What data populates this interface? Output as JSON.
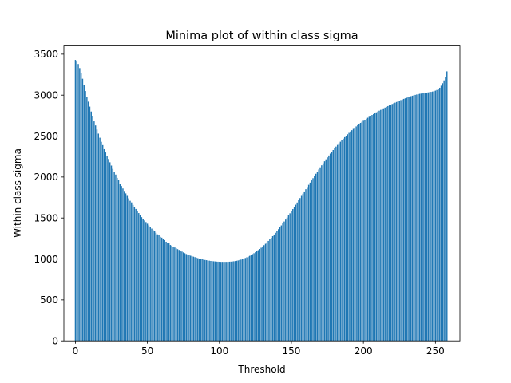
{
  "chart_data": {
    "type": "bar",
    "title": "Minima plot of within class sigma",
    "xlabel": "Threshold",
    "ylabel": "Within class sigma",
    "xlim": [
      -8,
      267
    ],
    "ylim": [
      0,
      3600
    ],
    "xticks": [
      0,
      50,
      100,
      150,
      200,
      250
    ],
    "yticks": [
      0,
      500,
      1000,
      1500,
      2000,
      2500,
      3000,
      3500
    ],
    "grid": false,
    "legend": "none",
    "bar_color": "#1f77b4",
    "series": [
      {
        "x_start": 0,
        "values": [
          3430,
          3410,
          3380,
          3330,
          3270,
          3200,
          3120,
          3050,
          2980,
          2920,
          2860,
          2800,
          2740,
          2680,
          2630,
          2580,
          2530,
          2480,
          2430,
          2390,
          2340,
          2300,
          2260,
          2220,
          2180,
          2140,
          2100,
          2060,
          2030,
          1990,
          1960,
          1920,
          1890,
          1860,
          1830,
          1800,
          1770,
          1740,
          1710,
          1690,
          1660,
          1630,
          1610,
          1580,
          1560,
          1540,
          1510,
          1490,
          1470,
          1450,
          1430,
          1410,
          1390,
          1370,
          1350,
          1340,
          1320,
          1300,
          1290,
          1270,
          1260,
          1240,
          1230,
          1210,
          1200,
          1190,
          1170,
          1160,
          1150,
          1140,
          1130,
          1120,
          1110,
          1100,
          1090,
          1080,
          1070,
          1060,
          1055,
          1048,
          1040,
          1034,
          1028,
          1022,
          1016,
          1010,
          1005,
          1000,
          996,
          992,
          988,
          985,
          982,
          979,
          976,
          974,
          972,
          970,
          968,
          967,
          966,
          965,
          965,
          965,
          965,
          965,
          966,
          967,
          968,
          970,
          972,
          975,
          978,
          982,
          987,
          992,
          998,
          1005,
          1012,
          1020,
          1029,
          1038,
          1048,
          1059,
          1070,
          1082,
          1095,
          1108,
          1122,
          1137,
          1152,
          1168,
          1185,
          1202,
          1220,
          1239,
          1258,
          1278,
          1298,
          1319,
          1341,
          1363,
          1386,
          1409,
          1433,
          1457,
          1481,
          1506,
          1531,
          1557,
          1583,
          1609,
          1635,
          1662,
          1689,
          1716,
          1743,
          1770,
          1797,
          1824,
          1851,
          1878,
          1905,
          1932,
          1959,
          1986,
          2013,
          2040,
          2066,
          2092,
          2118,
          2143,
          2168,
          2192,
          2216,
          2240,
          2263,
          2286,
          2308,
          2330,
          2351,
          2372,
          2392,
          2412,
          2431,
          2450,
          2469,
          2487,
          2505,
          2522,
          2539,
          2556,
          2572,
          2588,
          2603,
          2618,
          2633,
          2647,
          2661,
          2674,
          2687,
          2700,
          2712,
          2724,
          2736,
          2747,
          2758,
          2769,
          2780,
          2790,
          2800,
          2810,
          2820,
          2830,
          2839,
          2848,
          2857,
          2866,
          2875,
          2884,
          2892,
          2900,
          2908,
          2916,
          2924,
          2932,
          2940,
          2947,
          2954,
          2961,
          2968,
          2975,
          2981,
          2987,
          2993,
          2998,
          3003,
          3008,
          3012,
          3016,
          3019,
          3022,
          3025,
          3028,
          3031,
          3034,
          3037,
          3040,
          3044,
          3049,
          3055,
          3063,
          3073,
          3090,
          3115,
          3145,
          3180,
          3220,
          3290
        ]
      }
    ]
  }
}
